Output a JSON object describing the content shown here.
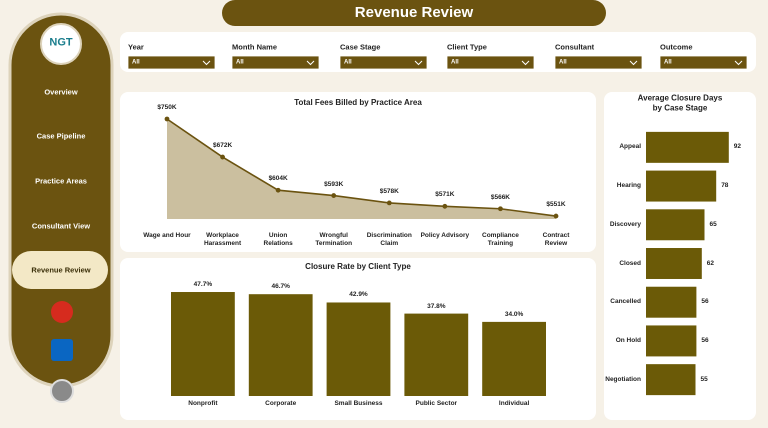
{
  "header": {
    "title": "Revenue Review"
  },
  "sidebar": {
    "logo": "NGT",
    "items": [
      "Overview",
      "Case Pipeline",
      "Practice Areas",
      "Consultant View",
      "Revenue Review"
    ],
    "active": 4
  },
  "filters": [
    {
      "label": "Year",
      "value": "All"
    },
    {
      "label": "Month Name",
      "value": "All"
    },
    {
      "label": "Case Stage",
      "value": "All"
    },
    {
      "label": "Client Type",
      "value": "All"
    },
    {
      "label": "Consultant",
      "value": "All"
    },
    {
      "label": "Outcome",
      "value": "All"
    }
  ],
  "chart_data": [
    {
      "type": "area",
      "title": "Total Fees Billed by Practice Area",
      "categories": [
        "Wage and Hour",
        "Workplace\nHarassment",
        "Union\nRelations",
        "Wrongful\nTermination",
        "Discrimination\nClaim",
        "Policy Advisory",
        "Compliance\nTraining",
        "Contract\nReview"
      ],
      "values": [
        750000,
        672000,
        604000,
        593000,
        578000,
        571000,
        566000,
        551000
      ],
      "value_labels": [
        "$750K",
        "$672K",
        "$604K",
        "$593K",
        "$578K",
        "$571K",
        "$566K",
        "$551K"
      ],
      "color": "#6b5310",
      "fill": "#cbbf9f",
      "ylim": [
        545000,
        750000
      ]
    },
    {
      "type": "bar",
      "title": "Closure Rate by Client Type",
      "categories": [
        "Nonprofit",
        "Corporate",
        "Small Business",
        "Public Sector",
        "Individual"
      ],
      "values": [
        47.7,
        46.7,
        42.9,
        37.8,
        34.0
      ],
      "value_labels": [
        "47.7%",
        "46.7%",
        "42.9%",
        "37.8%",
        "34.0%"
      ],
      "color": "#6b5a07",
      "ylim": [
        0,
        50
      ]
    },
    {
      "type": "hbar",
      "title": "Average Closure Days by Case Stage",
      "categories": [
        "Appeal",
        "Hearing",
        "Discovery",
        "Closed",
        "Cancelled",
        "On Hold",
        "Negotiation"
      ],
      "values": [
        92,
        78,
        65,
        62,
        56,
        56,
        55
      ],
      "color": "#6b5a07",
      "xlim": [
        0,
        100
      ]
    }
  ]
}
